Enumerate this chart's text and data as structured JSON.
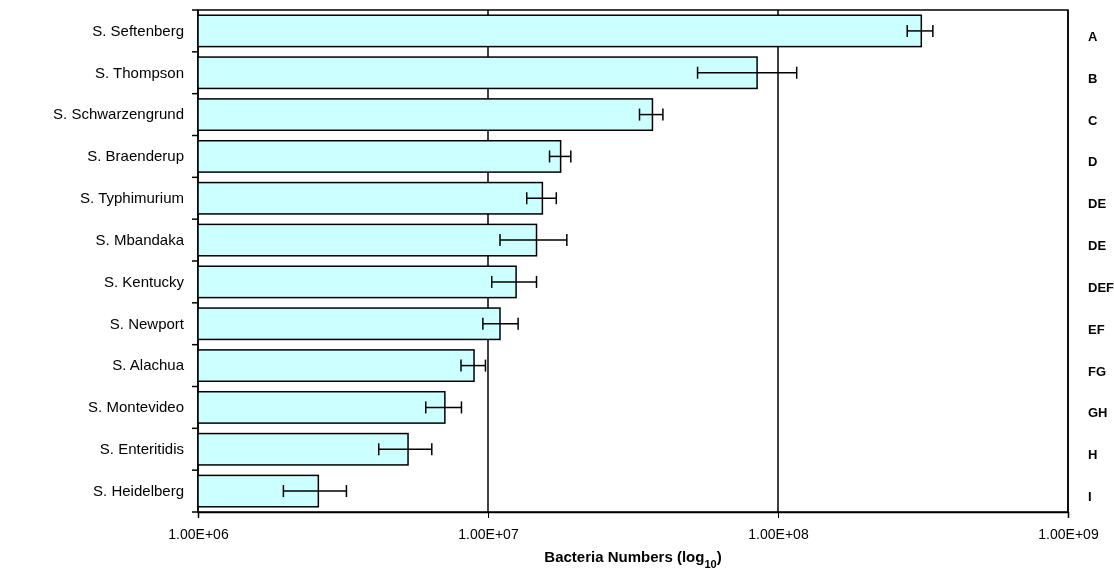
{
  "chart_data": {
    "type": "bar",
    "orientation": "horizontal",
    "xlabel": "Bacteria Numbers (log$_{10}$)",
    "categories": [
      "S. Seftenberg",
      "S. Thompson",
      "S. Schwarzengrund",
      "S. Braenderup",
      "S. Typhimurium",
      "S. Mbandaka",
      "S. Kentucky",
      "S. Newport",
      "S. Alachua",
      "S. Montevideo",
      "S. Enteritidis",
      "S. Heidelberg"
    ],
    "values": [
      312000000,
      84700000,
      36900000,
      17800000,
      15400000,
      14700000,
      12500000,
      11000000,
      8950000,
      7100000,
      5300000,
      2600000
    ],
    "errors": [
      [
        279000000,
        342000000
      ],
      [
        52800000,
        116000000
      ],
      [
        33300000,
        40100000
      ],
      [
        16300000,
        19300000
      ],
      [
        13600000,
        17200000
      ],
      [
        11000000,
        18700000
      ],
      [
        10300000,
        14700000
      ],
      [
        9600000,
        12700000
      ],
      [
        8070000,
        9800000
      ],
      [
        6100000,
        8100000
      ],
      [
        4200000,
        6400000
      ],
      [
        1970000,
        3250000
      ]
    ],
    "color": "#ccffff",
    "log": "x",
    "xlim": [
      1000000,
      1000000000
    ],
    "xticks": [
      {
        "value": 1000000,
        "label": "1.00E+06"
      },
      {
        "value": 10000000,
        "label": "1.00E+07"
      },
      {
        "value": 100000000,
        "label": "1.00E+08"
      },
      {
        "value": 1000000000,
        "label": "1.00E+09"
      }
    ],
    "grid": "x",
    "annotations": [
      "A",
      "B",
      "C",
      "D",
      "DE",
      "DE",
      "DEF",
      "EF",
      "FG",
      "GH",
      "H",
      "I"
    ]
  }
}
